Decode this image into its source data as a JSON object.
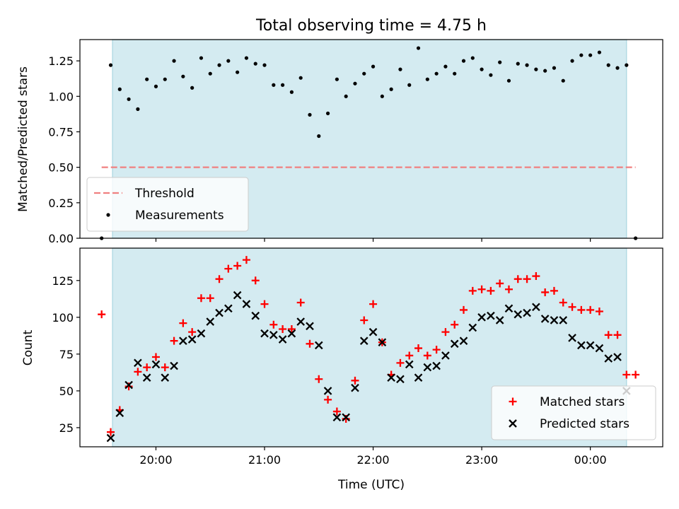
{
  "figure": {
    "title": "Total observing time = 4.75 h",
    "shade_color": "#d4ebf1",
    "shade_edge_color": "#a9d6e0",
    "shade_range": [
      "19:36",
      "00:20"
    ]
  },
  "chart_data": [
    {
      "type": "scatter",
      "ylabel": "Matched/Predicted stars",
      "xlim": [
        "19:18",
        "00:40"
      ],
      "ylim": [
        0,
        1.4
      ],
      "yticks": [
        "0.00",
        "0.25",
        "0.50",
        "0.75",
        "1.00",
        "1.25"
      ],
      "legend_position": "lower-left",
      "threshold": {
        "name": "Threshold",
        "value": 0.5,
        "x_range": [
          "19:30",
          "00:25"
        ],
        "color": "#f08080",
        "style": "dashed"
      },
      "series": [
        {
          "name": "Measurements",
          "marker": "dot",
          "color": "#000000",
          "x": [
            "19:30",
            "19:35",
            "19:40",
            "19:45",
            "19:50",
            "19:55",
            "20:00",
            "20:05",
            "20:10",
            "20:15",
            "20:20",
            "20:25",
            "20:30",
            "20:35",
            "20:40",
            "20:45",
            "20:50",
            "20:55",
            "21:00",
            "21:05",
            "21:10",
            "21:15",
            "21:20",
            "21:25",
            "21:30",
            "21:35",
            "21:40",
            "21:45",
            "21:50",
            "21:55",
            "22:00",
            "22:05",
            "22:10",
            "22:15",
            "22:20",
            "22:25",
            "22:30",
            "22:35",
            "22:40",
            "22:45",
            "22:50",
            "22:55",
            "23:00",
            "23:05",
            "23:10",
            "23:15",
            "23:20",
            "23:25",
            "23:30",
            "23:35",
            "23:40",
            "23:45",
            "23:50",
            "23:55",
            "00:00",
            "00:05",
            "00:10",
            "00:15",
            "00:20",
            "00:25"
          ],
          "y": [
            0,
            1.22,
            1.05,
            0.98,
            0.91,
            1.12,
            1.07,
            1.12,
            1.25,
            1.14,
            1.06,
            1.27,
            1.16,
            1.22,
            1.25,
            1.17,
            1.27,
            1.23,
            1.22,
            1.08,
            1.08,
            1.03,
            1.13,
            0.87,
            0.72,
            0.88,
            1.12,
            1.0,
            1.09,
            1.16,
            1.21,
            1.0,
            1.05,
            1.19,
            1.08,
            1.34,
            1.12,
            1.16,
            1.21,
            1.16,
            1.25,
            1.27,
            1.19,
            1.15,
            1.24,
            1.11,
            1.23,
            1.22,
            1.19,
            1.18,
            1.2,
            1.11,
            1.25,
            1.29,
            1.29,
            1.31,
            1.22,
            1.2,
            1.22,
            0
          ]
        }
      ]
    },
    {
      "type": "scatter",
      "xlabel": "Time (UTC)",
      "ylabel": "Count",
      "xlim": [
        "19:18",
        "00:40"
      ],
      "ylim": [
        12,
        147
      ],
      "yticks": [
        "25",
        "50",
        "75",
        "100",
        "125"
      ],
      "xticks": [
        "20:00",
        "21:00",
        "22:00",
        "23:00",
        "00:00"
      ],
      "legend_position": "lower-right",
      "series": [
        {
          "name": "Matched stars",
          "marker": "plus",
          "color": "#ff0000",
          "x": [
            "19:30",
            "19:35",
            "19:40",
            "19:45",
            "19:50",
            "19:55",
            "20:00",
            "20:05",
            "20:10",
            "20:15",
            "20:20",
            "20:25",
            "20:30",
            "20:35",
            "20:40",
            "20:45",
            "20:50",
            "20:55",
            "21:00",
            "21:05",
            "21:10",
            "21:15",
            "21:20",
            "21:25",
            "21:30",
            "21:35",
            "21:40",
            "21:45",
            "21:50",
            "21:55",
            "22:00",
            "22:05",
            "22:10",
            "22:15",
            "22:20",
            "22:25",
            "22:30",
            "22:35",
            "22:40",
            "22:45",
            "22:50",
            "22:55",
            "23:00",
            "23:05",
            "23:10",
            "23:15",
            "23:20",
            "23:25",
            "23:30",
            "23:35",
            "23:40",
            "23:45",
            "23:50",
            "23:55",
            "00:00",
            "00:05",
            "00:10",
            "00:15",
            "00:20",
            "00:25"
          ],
          "y": [
            102,
            22,
            37,
            53,
            63,
            66,
            73,
            66,
            84,
            96,
            90,
            113,
            113,
            126,
            133,
            135,
            139,
            125,
            109,
            95,
            92,
            92,
            110,
            82,
            58,
            44,
            36,
            31,
            57,
            98,
            109,
            83,
            61,
            69,
            74,
            79,
            74,
            78,
            90,
            95,
            105,
            118,
            119,
            118,
            123,
            119,
            126,
            126,
            128,
            117,
            118,
            110,
            107,
            105,
            105,
            104,
            88,
            88,
            61,
            61
          ]
        },
        {
          "name": "Predicted stars",
          "marker": "cross",
          "color": "#000000",
          "x": [
            "19:35",
            "19:40",
            "19:45",
            "19:50",
            "19:55",
            "20:00",
            "20:05",
            "20:10",
            "20:15",
            "20:20",
            "20:25",
            "20:30",
            "20:35",
            "20:40",
            "20:45",
            "20:50",
            "20:55",
            "21:00",
            "21:05",
            "21:10",
            "21:15",
            "21:20",
            "21:25",
            "21:30",
            "21:35",
            "21:40",
            "21:45",
            "21:50",
            "21:55",
            "22:00",
            "22:05",
            "22:10",
            "22:15",
            "22:20",
            "22:25",
            "22:30",
            "22:35",
            "22:40",
            "22:45",
            "22:50",
            "22:55",
            "23:00",
            "23:05",
            "23:10",
            "23:15",
            "23:20",
            "23:25",
            "23:30",
            "23:35",
            "23:40",
            "23:45",
            "23:50",
            "23:55",
            "00:00",
            "00:05",
            "00:10",
            "00:15",
            "00:20"
          ],
          "y": [
            18,
            35,
            54,
            69,
            59,
            68,
            59,
            67,
            84,
            85,
            89,
            97,
            103,
            106,
            115,
            109,
            101,
            89,
            88,
            85,
            89,
            97,
            94,
            81,
            50,
            32,
            32,
            52,
            84,
            90,
            83,
            59,
            58,
            68,
            59,
            66,
            67,
            74,
            82,
            84,
            93,
            100,
            101,
            98,
            106,
            102,
            103,
            107,
            99,
            98,
            98,
            86,
            81,
            81,
            79,
            72,
            73,
            50
          ]
        }
      ]
    }
  ]
}
